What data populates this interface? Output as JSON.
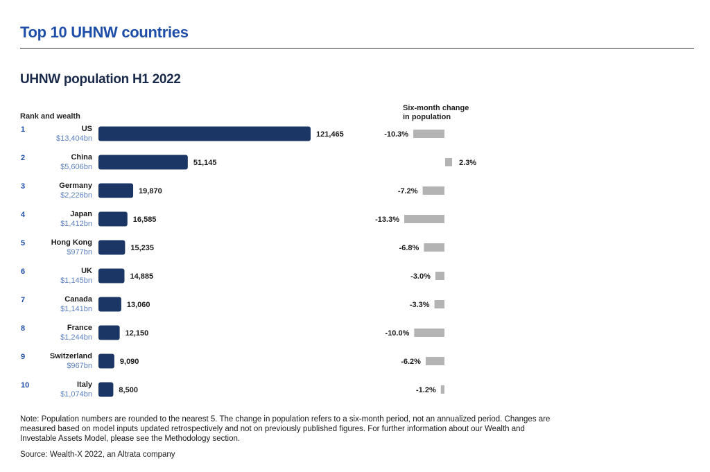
{
  "header": {
    "title": "Top 10 UHNW countries",
    "subtitle": "UHNW population H1 2022"
  },
  "columns": {
    "left_label": "Rank and wealth",
    "right_label_line1": "Six-month change",
    "right_label_line2": "in population"
  },
  "chart_data": {
    "type": "bar",
    "orientation": "horizontal",
    "categories": [
      "US",
      "China",
      "Germany",
      "Japan",
      "Hong Kong",
      "UK",
      "Canada",
      "France",
      "Switzerland",
      "Italy"
    ],
    "ranks": [
      "1",
      "2",
      "3",
      "4",
      "5",
      "6",
      "7",
      "8",
      "9",
      "10"
    ],
    "wealth": [
      "$13,404bn",
      "$5,606bn",
      "$2,226bn",
      "$1,412bn",
      "$977bn",
      "$1,145bn",
      "$1,141bn",
      "$1,244bn",
      "$967bn",
      "$1,074bn"
    ],
    "series": [
      {
        "values": [
          121465,
          51145,
          19870,
          16585,
          15235,
          14885,
          13060,
          12150,
          9090,
          8500
        ],
        "labels": [
          "121,465",
          "51,145",
          "19,870",
          "16,585",
          "15,235",
          "14,885",
          "13,060",
          "12,150",
          "9,090",
          "8,500"
        ],
        "color": "#1b3564"
      },
      {
        "values": [
          -10.3,
          2.3,
          -7.2,
          -13.3,
          -6.8,
          -3.0,
          -3.3,
          -10.0,
          -6.2,
          -1.2
        ],
        "labels": [
          "-10.3%",
          "2.3%",
          "-7.2%",
          "-13.3%",
          "-6.8%",
          "-3.0%",
          "-3.3%",
          "-10.0%",
          "-6.2%",
          "-1.2%"
        ],
        "color": "#b3b3b3"
      }
    ],
    "rank_color": "#1e4ea8",
    "wealth_color": "#5a7fc0"
  },
  "footer": {
    "note": "Note: Population numbers are rounded to the nearest 5. The change in population refers to a six-month period, not an annualized period. Changes are measured based on model inputs updated retrospectively and not on previously published figures. For further information about our Wealth and Investable Assets Model, please see the Methodology section.",
    "source": "Source: Wealth-X 2022, an Altrata company"
  }
}
